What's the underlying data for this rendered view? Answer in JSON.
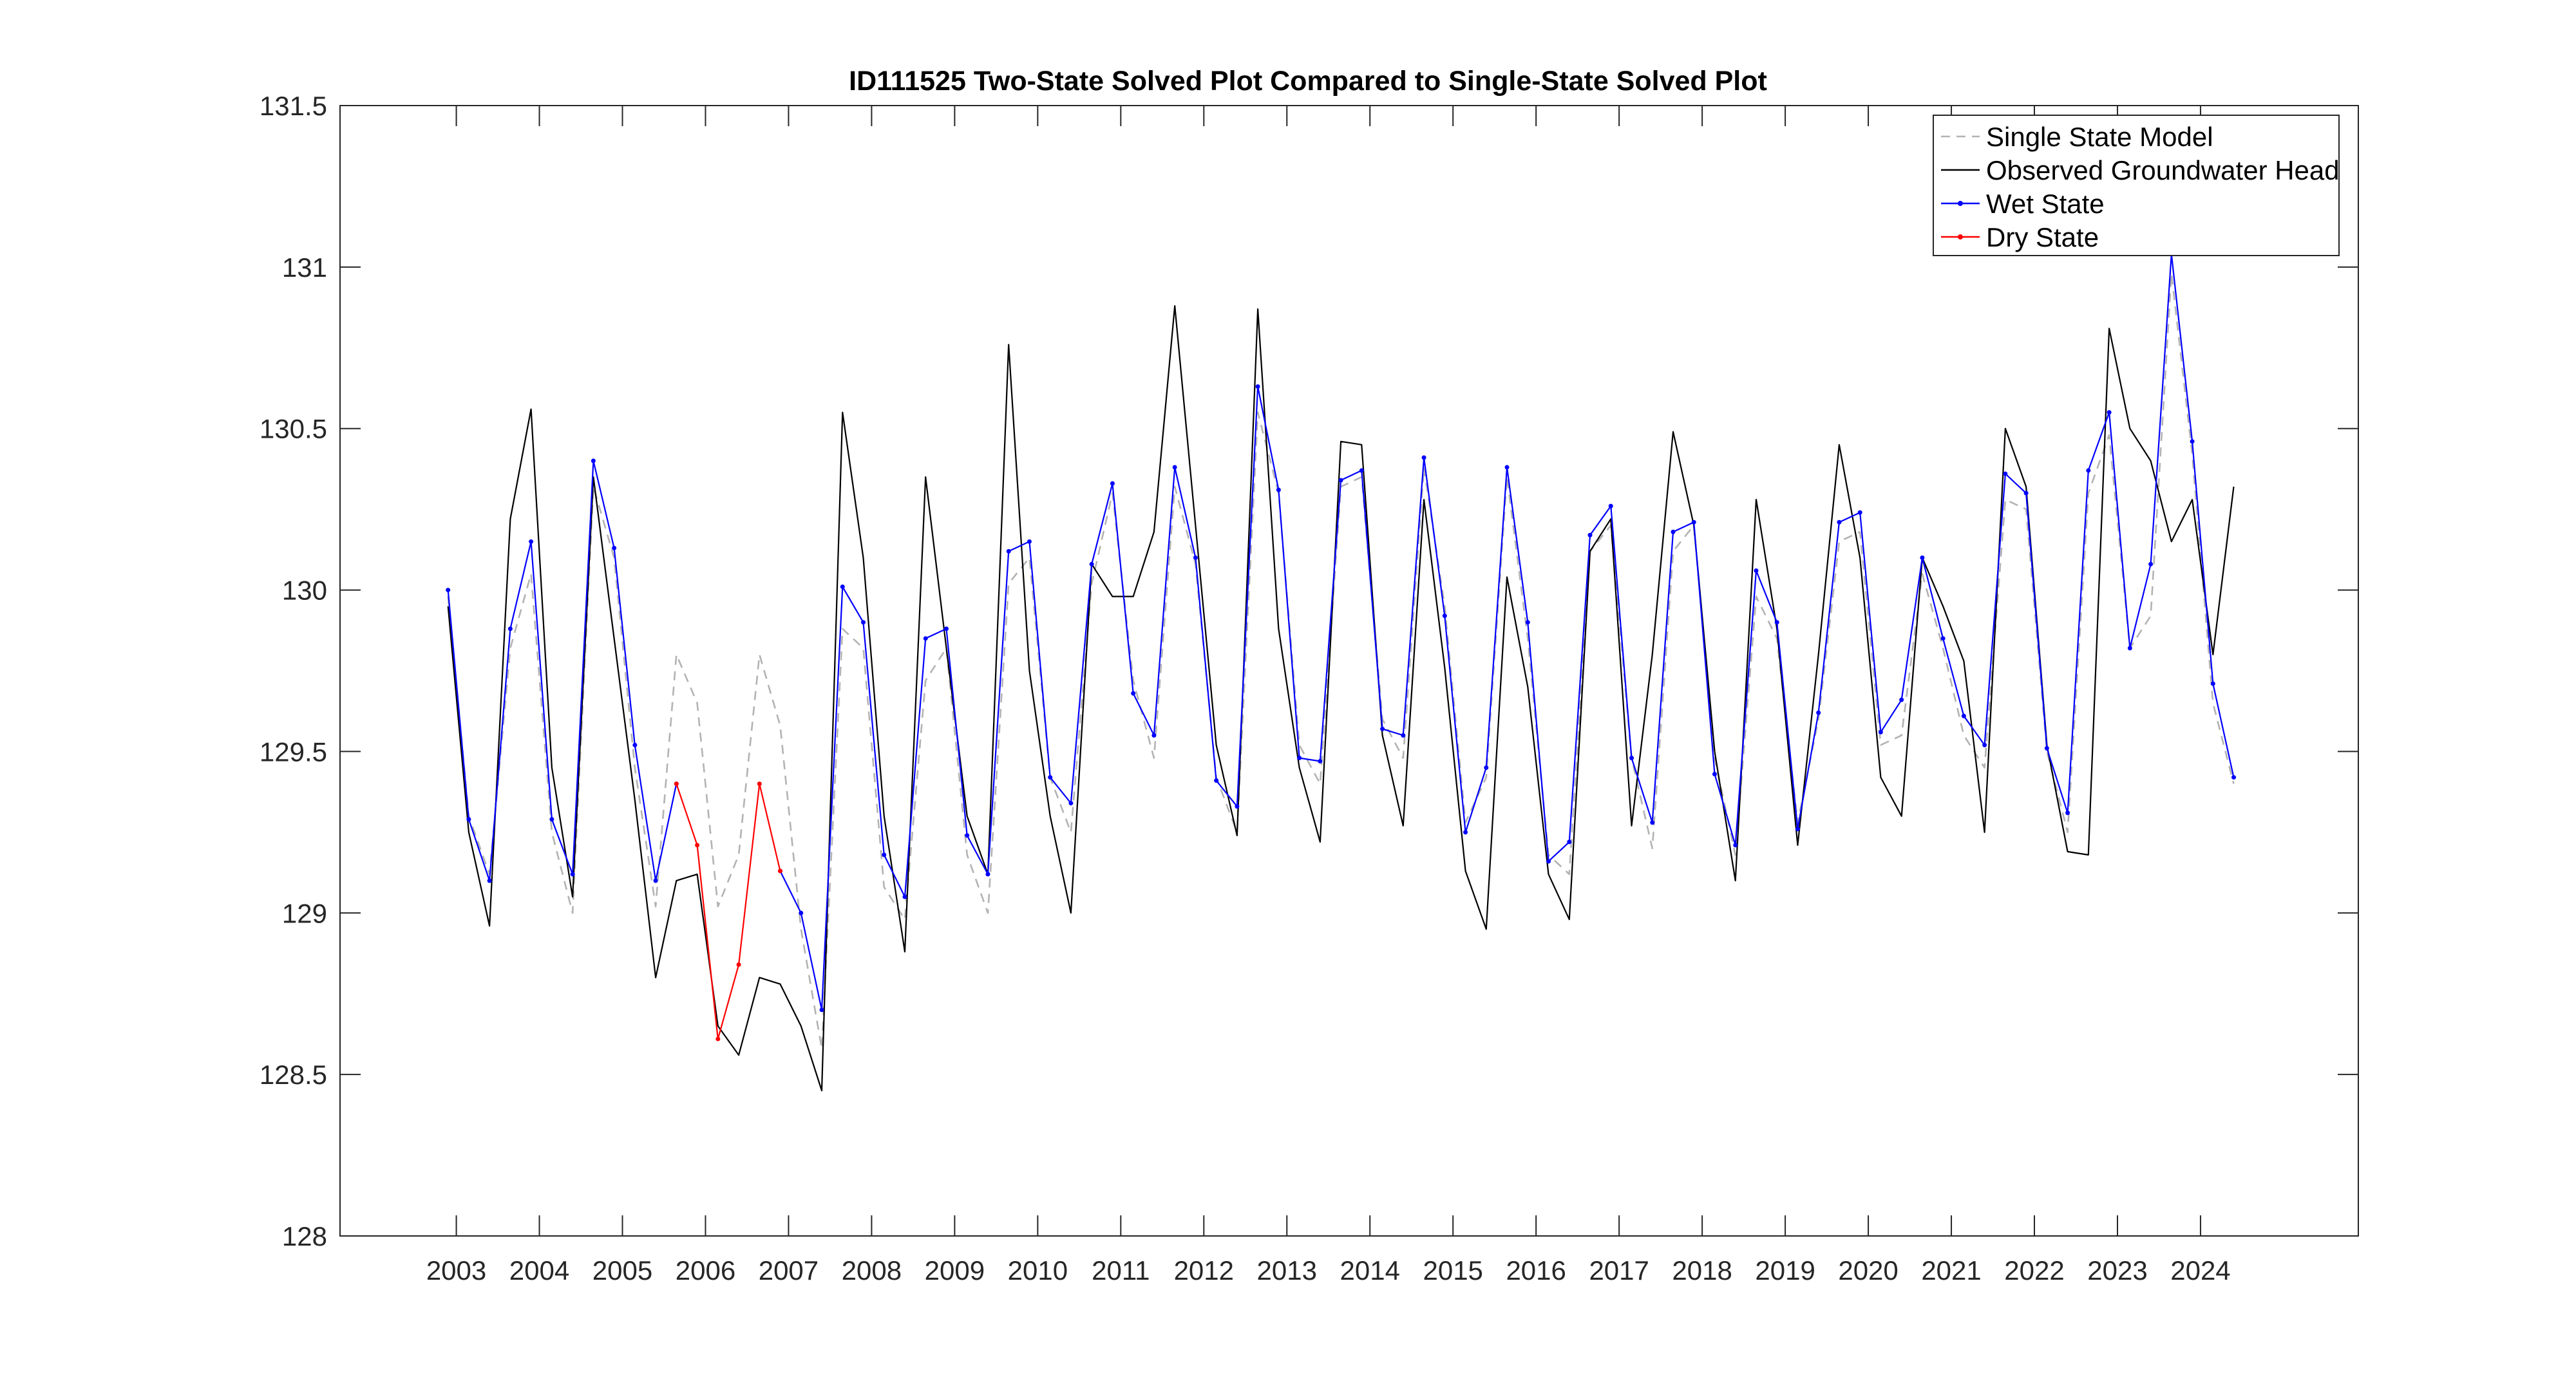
{
  "chart_data": {
    "type": "line",
    "title": "ID111525 Two-State Solved Plot Compared to Single-State Solved Plot",
    "xlabel": "",
    "ylabel": "",
    "xlim": [
      2001.6,
      2025.9
    ],
    "ylim": [
      128,
      131.5
    ],
    "x_tick_labels": [
      "2003",
      "2004",
      "2005",
      "2006",
      "2007",
      "2008",
      "2009",
      "2010",
      "2011",
      "2012",
      "2013",
      "2014",
      "2015",
      "2016",
      "2017",
      "2018",
      "2019",
      "2020",
      "2021",
      "2022",
      "2023",
      "2024"
    ],
    "y_tick_labels": [
      "128",
      "128.5",
      "129",
      "129.5",
      "130",
      "130.5",
      "131",
      "131.5"
    ],
    "legend_position": "top-right",
    "grid": false,
    "series": [
      {
        "name": "Single State Model",
        "color": "#b3b3b3",
        "style": "dashed",
        "points": [
          [
            2002.9,
            129.98
          ],
          [
            2003.15,
            129.3
          ],
          [
            2003.4,
            129.12
          ],
          [
            2003.65,
            129.82
          ],
          [
            2003.9,
            130.05
          ],
          [
            2004.15,
            129.25
          ],
          [
            2004.4,
            129.0
          ],
          [
            2004.65,
            130.32
          ],
          [
            2004.9,
            130.1
          ],
          [
            2005.15,
            129.45
          ],
          [
            2005.4,
            129.02
          ],
          [
            2005.65,
            129.8
          ],
          [
            2005.9,
            129.65
          ],
          [
            2006.15,
            129.02
          ],
          [
            2006.4,
            129.18
          ],
          [
            2006.65,
            129.8
          ],
          [
            2006.9,
            129.58
          ],
          [
            2007.15,
            128.95
          ],
          [
            2007.4,
            128.58
          ],
          [
            2007.65,
            129.88
          ],
          [
            2007.9,
            129.82
          ],
          [
            2008.15,
            129.08
          ],
          [
            2008.4,
            128.98
          ],
          [
            2008.65,
            129.72
          ],
          [
            2008.9,
            129.82
          ],
          [
            2009.15,
            129.18
          ],
          [
            2009.4,
            129.0
          ],
          [
            2009.65,
            130.02
          ],
          [
            2009.9,
            130.1
          ],
          [
            2010.15,
            129.42
          ],
          [
            2010.4,
            129.25
          ],
          [
            2010.65,
            130.02
          ],
          [
            2010.9,
            130.3
          ],
          [
            2011.15,
            129.72
          ],
          [
            2011.4,
            129.48
          ],
          [
            2011.65,
            130.32
          ],
          [
            2011.9,
            130.08
          ],
          [
            2012.15,
            129.42
          ],
          [
            2012.4,
            129.25
          ],
          [
            2012.65,
            130.55
          ],
          [
            2012.9,
            130.3
          ],
          [
            2013.15,
            129.52
          ],
          [
            2013.4,
            129.4
          ],
          [
            2013.65,
            130.32
          ],
          [
            2013.9,
            130.35
          ],
          [
            2014.15,
            129.6
          ],
          [
            2014.4,
            129.48
          ],
          [
            2014.65,
            130.38
          ],
          [
            2014.9,
            129.95
          ],
          [
            2015.15,
            129.28
          ],
          [
            2015.4,
            129.42
          ],
          [
            2015.65,
            130.35
          ],
          [
            2015.9,
            129.85
          ],
          [
            2016.15,
            129.18
          ],
          [
            2016.4,
            129.12
          ],
          [
            2016.65,
            130.12
          ],
          [
            2016.9,
            130.2
          ],
          [
            2017.15,
            129.48
          ],
          [
            2017.4,
            129.2
          ],
          [
            2017.65,
            130.12
          ],
          [
            2017.9,
            130.2
          ],
          [
            2018.15,
            129.48
          ],
          [
            2018.4,
            129.18
          ],
          [
            2018.65,
            129.98
          ],
          [
            2018.9,
            129.85
          ],
          [
            2019.15,
            129.28
          ],
          [
            2019.4,
            129.6
          ],
          [
            2019.65,
            130.15
          ],
          [
            2019.9,
            130.18
          ],
          [
            2020.15,
            129.52
          ],
          [
            2020.4,
            129.55
          ],
          [
            2020.65,
            130.05
          ],
          [
            2020.9,
            129.82
          ],
          [
            2021.15,
            129.55
          ],
          [
            2021.4,
            129.45
          ],
          [
            2021.65,
            130.28
          ],
          [
            2021.9,
            130.25
          ],
          [
            2022.15,
            129.5
          ],
          [
            2022.4,
            129.25
          ],
          [
            2022.65,
            130.3
          ],
          [
            2022.9,
            130.48
          ],
          [
            2023.15,
            129.82
          ],
          [
            2023.4,
            129.92
          ],
          [
            2023.65,
            130.98
          ],
          [
            2023.9,
            130.42
          ],
          [
            2024.15,
            129.65
          ],
          [
            2024.4,
            129.4
          ]
        ]
      },
      {
        "name": "Observed Groundwater Head",
        "color": "#000000",
        "style": "solid",
        "points": [
          [
            2002.9,
            129.95
          ],
          [
            2003.15,
            129.25
          ],
          [
            2003.4,
            128.96
          ],
          [
            2003.65,
            130.22
          ],
          [
            2003.9,
            130.56
          ],
          [
            2004.15,
            129.45
          ],
          [
            2004.4,
            129.05
          ],
          [
            2004.65,
            130.35
          ],
          [
            2004.9,
            129.85
          ],
          [
            2005.15,
            129.35
          ],
          [
            2005.4,
            128.8
          ],
          [
            2005.65,
            129.1
          ],
          [
            2005.9,
            129.12
          ],
          [
            2006.15,
            128.65
          ],
          [
            2006.4,
            128.56
          ],
          [
            2006.65,
            128.8
          ],
          [
            2006.9,
            128.78
          ],
          [
            2007.15,
            128.65
          ],
          [
            2007.4,
            128.45
          ],
          [
            2007.65,
            130.55
          ],
          [
            2007.9,
            130.1
          ],
          [
            2008.15,
            129.3
          ],
          [
            2008.4,
            128.88
          ],
          [
            2008.65,
            130.35
          ],
          [
            2008.9,
            129.82
          ],
          [
            2009.15,
            129.3
          ],
          [
            2009.4,
            129.12
          ],
          [
            2009.65,
            130.76
          ],
          [
            2009.9,
            129.75
          ],
          [
            2010.15,
            129.3
          ],
          [
            2010.4,
            129.0
          ],
          [
            2010.65,
            130.08
          ],
          [
            2010.9,
            129.98
          ],
          [
            2011.15,
            129.98
          ],
          [
            2011.4,
            130.18
          ],
          [
            2011.65,
            130.88
          ],
          [
            2011.9,
            130.2
          ],
          [
            2012.15,
            129.52
          ],
          [
            2012.4,
            129.24
          ],
          [
            2012.65,
            130.87
          ],
          [
            2012.9,
            129.88
          ],
          [
            2013.15,
            129.45
          ],
          [
            2013.4,
            129.22
          ],
          [
            2013.65,
            130.46
          ],
          [
            2013.9,
            130.45
          ],
          [
            2014.15,
            129.55
          ],
          [
            2014.4,
            129.27
          ],
          [
            2014.65,
            130.28
          ],
          [
            2014.9,
            129.76
          ],
          [
            2015.15,
            129.13
          ],
          [
            2015.4,
            128.95
          ],
          [
            2015.65,
            130.04
          ],
          [
            2015.9,
            129.7
          ],
          [
            2016.15,
            129.12
          ],
          [
            2016.4,
            128.98
          ],
          [
            2016.65,
            130.12
          ],
          [
            2016.9,
            130.22
          ],
          [
            2017.15,
            129.27
          ],
          [
            2017.4,
            129.8
          ],
          [
            2017.65,
            130.49
          ],
          [
            2017.9,
            130.2
          ],
          [
            2018.15,
            129.5
          ],
          [
            2018.4,
            129.1
          ],
          [
            2018.65,
            130.28
          ],
          [
            2018.9,
            129.88
          ],
          [
            2019.15,
            129.21
          ],
          [
            2019.4,
            129.8
          ],
          [
            2019.65,
            130.45
          ],
          [
            2019.9,
            130.1
          ],
          [
            2020.15,
            129.42
          ],
          [
            2020.4,
            129.3
          ],
          [
            2020.65,
            130.1
          ],
          [
            2020.9,
            129.95
          ],
          [
            2021.15,
            129.78
          ],
          [
            2021.4,
            129.25
          ],
          [
            2021.65,
            130.5
          ],
          [
            2021.9,
            130.32
          ],
          [
            2022.15,
            129.52
          ],
          [
            2022.4,
            129.19
          ],
          [
            2022.65,
            129.18
          ],
          [
            2022.9,
            130.81
          ],
          [
            2023.15,
            130.5
          ],
          [
            2023.4,
            130.4
          ],
          [
            2023.65,
            130.15
          ],
          [
            2023.9,
            130.28
          ],
          [
            2024.15,
            129.8
          ],
          [
            2024.4,
            130.32
          ]
        ]
      },
      {
        "name": "Wet State",
        "color": "#0000ff",
        "style": "solid-dots",
        "segments": [
          [
            [
              2002.9,
              130.0
            ],
            [
              2003.15,
              129.29
            ],
            [
              2003.4,
              129.1
            ],
            [
              2003.65,
              129.88
            ],
            [
              2003.9,
              130.15
            ],
            [
              2004.15,
              129.29
            ],
            [
              2004.4,
              129.12
            ],
            [
              2004.65,
              130.4
            ],
            [
              2004.9,
              130.13
            ],
            [
              2005.15,
              129.52
            ],
            [
              2005.4,
              129.1
            ],
            [
              2005.65,
              129.4
            ]
          ],
          [
            [
              2006.9,
              129.13
            ],
            [
              2007.15,
              129.0
            ],
            [
              2007.4,
              128.7
            ],
            [
              2007.65,
              130.01
            ],
            [
              2007.9,
              129.9
            ],
            [
              2008.15,
              129.18
            ],
            [
              2008.4,
              129.05
            ],
            [
              2008.65,
              129.85
            ],
            [
              2008.9,
              129.88
            ],
            [
              2009.15,
              129.24
            ],
            [
              2009.4,
              129.12
            ],
            [
              2009.65,
              130.12
            ],
            [
              2009.9,
              130.15
            ],
            [
              2010.15,
              129.42
            ],
            [
              2010.4,
              129.34
            ],
            [
              2010.65,
              130.08
            ],
            [
              2010.9,
              130.33
            ],
            [
              2011.15,
              129.68
            ],
            [
              2011.4,
              129.55
            ],
            [
              2011.65,
              130.38
            ],
            [
              2011.9,
              130.1
            ],
            [
              2012.15,
              129.41
            ],
            [
              2012.4,
              129.33
            ],
            [
              2012.65,
              130.63
            ],
            [
              2012.9,
              130.31
            ],
            [
              2013.15,
              129.48
            ],
            [
              2013.4,
              129.47
            ],
            [
              2013.65,
              130.34
            ],
            [
              2013.9,
              130.37
            ],
            [
              2014.15,
              129.57
            ],
            [
              2014.4,
              129.55
            ],
            [
              2014.65,
              130.41
            ],
            [
              2014.9,
              129.92
            ],
            [
              2015.15,
              129.25
            ],
            [
              2015.4,
              129.45
            ],
            [
              2015.65,
              130.38
            ],
            [
              2015.9,
              129.9
            ],
            [
              2016.15,
              129.16
            ],
            [
              2016.4,
              129.22
            ],
            [
              2016.65,
              130.17
            ],
            [
              2016.9,
              130.26
            ],
            [
              2017.15,
              129.48
            ],
            [
              2017.4,
              129.28
            ],
            [
              2017.65,
              130.18
            ],
            [
              2017.9,
              130.21
            ],
            [
              2018.15,
              129.43
            ],
            [
              2018.4,
              129.21
            ],
            [
              2018.65,
              130.06
            ],
            [
              2018.9,
              129.9
            ],
            [
              2019.15,
              129.26
            ],
            [
              2019.4,
              129.62
            ],
            [
              2019.65,
              130.21
            ],
            [
              2019.9,
              130.24
            ],
            [
              2020.15,
              129.56
            ],
            [
              2020.4,
              129.66
            ],
            [
              2020.65,
              130.1
            ],
            [
              2020.9,
              129.85
            ],
            [
              2021.15,
              129.61
            ],
            [
              2021.4,
              129.52
            ],
            [
              2021.65,
              130.36
            ],
            [
              2021.9,
              130.3
            ],
            [
              2022.15,
              129.51
            ],
            [
              2022.4,
              129.31
            ],
            [
              2022.65,
              130.37
            ],
            [
              2022.9,
              130.55
            ],
            [
              2023.15,
              129.82
            ],
            [
              2023.4,
              130.08
            ],
            [
              2023.65,
              131.04
            ],
            [
              2023.9,
              130.46
            ],
            [
              2024.15,
              129.71
            ],
            [
              2024.4,
              129.42
            ]
          ]
        ]
      },
      {
        "name": "Dry State",
        "color": "#ff0000",
        "style": "solid-dots",
        "segments": [
          [
            [
              2005.65,
              129.4
            ],
            [
              2005.9,
              129.21
            ],
            [
              2006.15,
              128.61
            ],
            [
              2006.4,
              128.84
            ],
            [
              2006.65,
              129.4
            ],
            [
              2006.9,
              129.13
            ]
          ]
        ]
      }
    ]
  }
}
